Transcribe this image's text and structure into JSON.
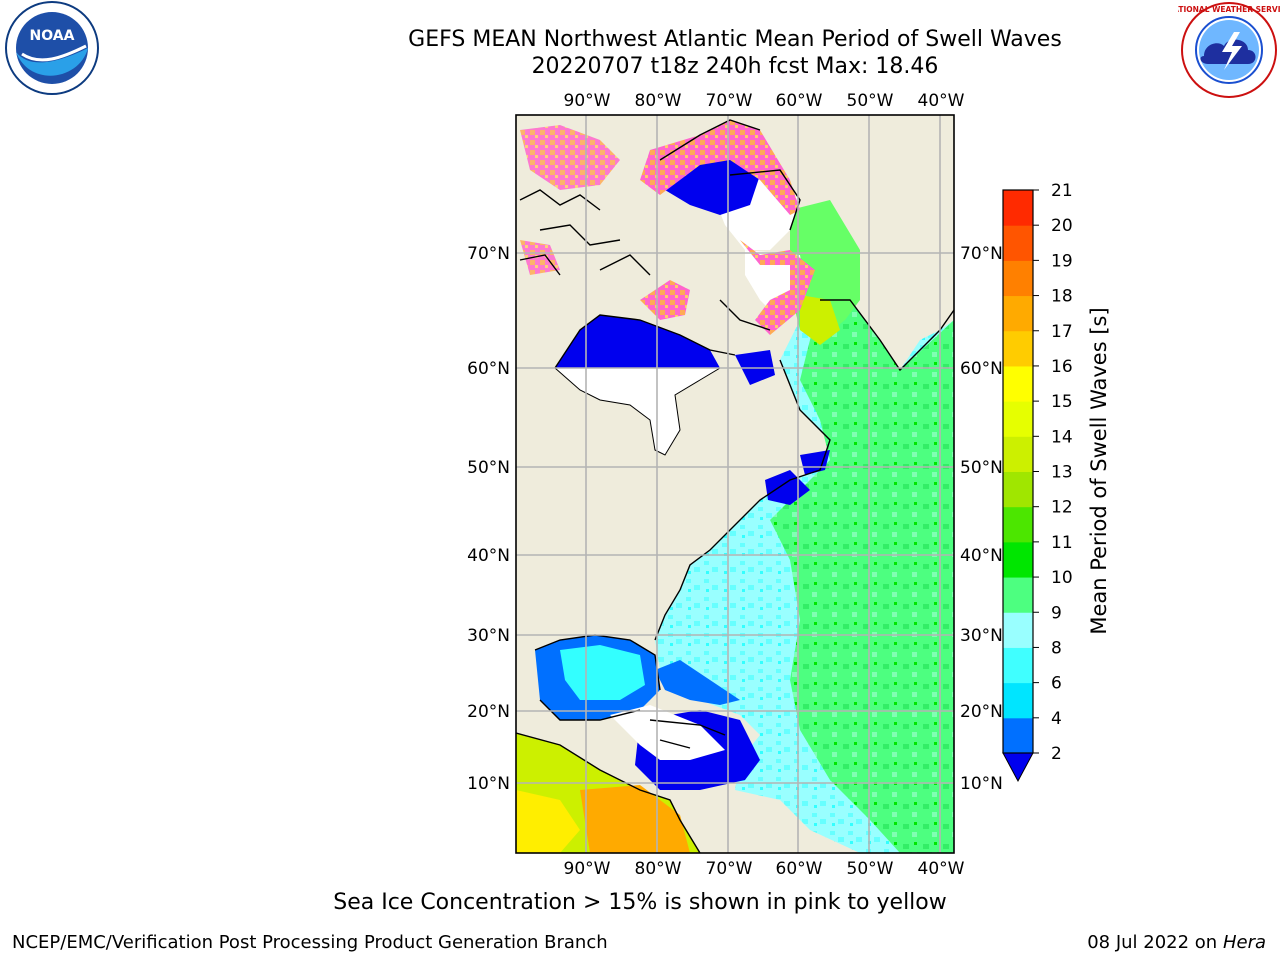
{
  "header": {
    "title_line1": "GEFS MEAN Northwest Atlantic Mean Period of Swell Waves",
    "title_line2": "20220707 t18z 240h fcst   Max: 18.46"
  },
  "logos": {
    "left": "noaa-logo",
    "left_text": "NOAA",
    "right": "nws-logo",
    "right_text": "NATIONAL WEATHER SERVICE"
  },
  "map": {
    "lon_labels": [
      "90°W",
      "80°W",
      "70°W",
      "60°W",
      "50°W",
      "40°W"
    ],
    "lat_labels": [
      "70°N",
      "60°N",
      "50°N",
      "40°N",
      "30°N",
      "20°N",
      "10°N"
    ],
    "colors": {
      "land": "#efecdc",
      "grid": "#b4b4b4",
      "ocean_light": "#99ffff",
      "ocean_mid": "#33ffff",
      "ocean_green": "#4dff80",
      "deep_blue": "#0000ee",
      "ice_pink": "#ff66cc",
      "ice_orange": "#ffaa55"
    }
  },
  "colorbar": {
    "label": "Mean Period of Swell Waves [s]",
    "ticks": [
      "2",
      "4",
      "6",
      "8",
      "9",
      "10",
      "11",
      "12",
      "13",
      "14",
      "15",
      "16",
      "17",
      "18",
      "19",
      "20",
      "21"
    ],
    "colors": [
      "#0070ff",
      "#00e5ff",
      "#40ffff",
      "#99ffff",
      "#4dff80",
      "#00e600",
      "#4ce600",
      "#a0e600",
      "#ccf000",
      "#e6ff00",
      "#ffff00",
      "#ffcc00",
      "#ffaa00",
      "#ff8000",
      "#ff5500",
      "#ff2a00"
    ],
    "under_color": "#0000ee",
    "over_color": "#ff0000"
  },
  "footer": {
    "note": "Sea Ice Concentration > 15% is shown in pink to yellow",
    "credit_left": "NCEP/EMC/Verification Post Processing Product Generation Branch",
    "credit_date": "08 Jul 2022 on",
    "credit_host": "Hera"
  }
}
